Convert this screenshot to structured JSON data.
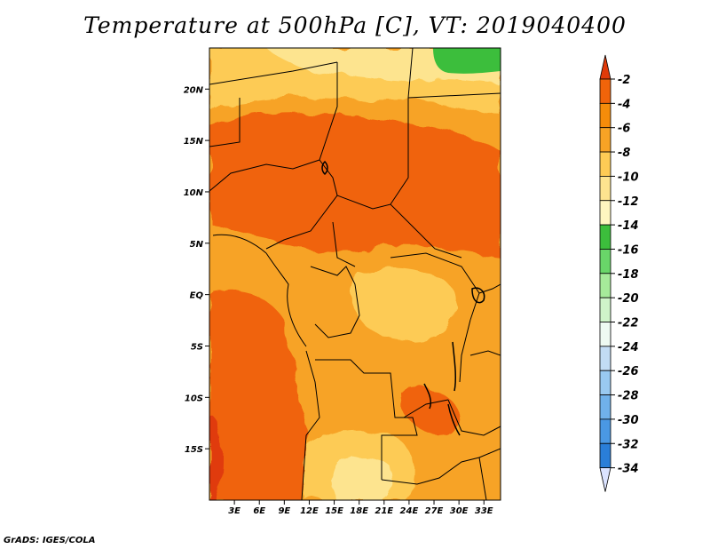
{
  "title": "Temperature at 500hPa [C], VT: 2019040400",
  "footer": "GrADS: IGES/COLA",
  "map": {
    "lon_range": [
      0,
      35
    ],
    "lat_range": [
      -20,
      24
    ],
    "lon_ticks": [
      {
        "value": 3,
        "label": "3E"
      },
      {
        "value": 6,
        "label": "6E"
      },
      {
        "value": 9,
        "label": "9E"
      },
      {
        "value": 12,
        "label": "12E"
      },
      {
        "value": 15,
        "label": "15E"
      },
      {
        "value": 18,
        "label": "18E"
      },
      {
        "value": 21,
        "label": "21E"
      },
      {
        "value": 24,
        "label": "24E"
      },
      {
        "value": 27,
        "label": "27E"
      },
      {
        "value": 30,
        "label": "30E"
      },
      {
        "value": 33,
        "label": "33E"
      }
    ],
    "lat_ticks": [
      {
        "value": 20,
        "label": "20N"
      },
      {
        "value": 15,
        "label": "15N"
      },
      {
        "value": 10,
        "label": "10N"
      },
      {
        "value": 5,
        "label": "5N"
      },
      {
        "value": 0,
        "label": "EQ"
      },
      {
        "value": -5,
        "label": "5S"
      },
      {
        "value": -10,
        "label": "10S"
      },
      {
        "value": -15,
        "label": "15S"
      }
    ]
  },
  "colorbar": {
    "colors": [
      "#e03a0a",
      "#f0640a",
      "#f58c0a",
      "#f7a325",
      "#fdcb55",
      "#fde48f",
      "#fff6c0",
      "#3cbe3c",
      "#69d669",
      "#a6ea9a",
      "#cff4c9",
      "#eefaf2",
      "#c2dcf4",
      "#99c9f0",
      "#70b1ea",
      "#4a98e4",
      "#2a7ed8",
      "#1a62c4",
      "#124ab0",
      "#0c2d8c",
      "#081570",
      "#dbe3ff"
    ],
    "labels": [
      "-2",
      "-4",
      "-6",
      "-8",
      "-10",
      "-12",
      "-14",
      "-16",
      "-18",
      "-20",
      "-22",
      "-24",
      "-26",
      "-28",
      "-30",
      "-32",
      "-34"
    ]
  }
}
